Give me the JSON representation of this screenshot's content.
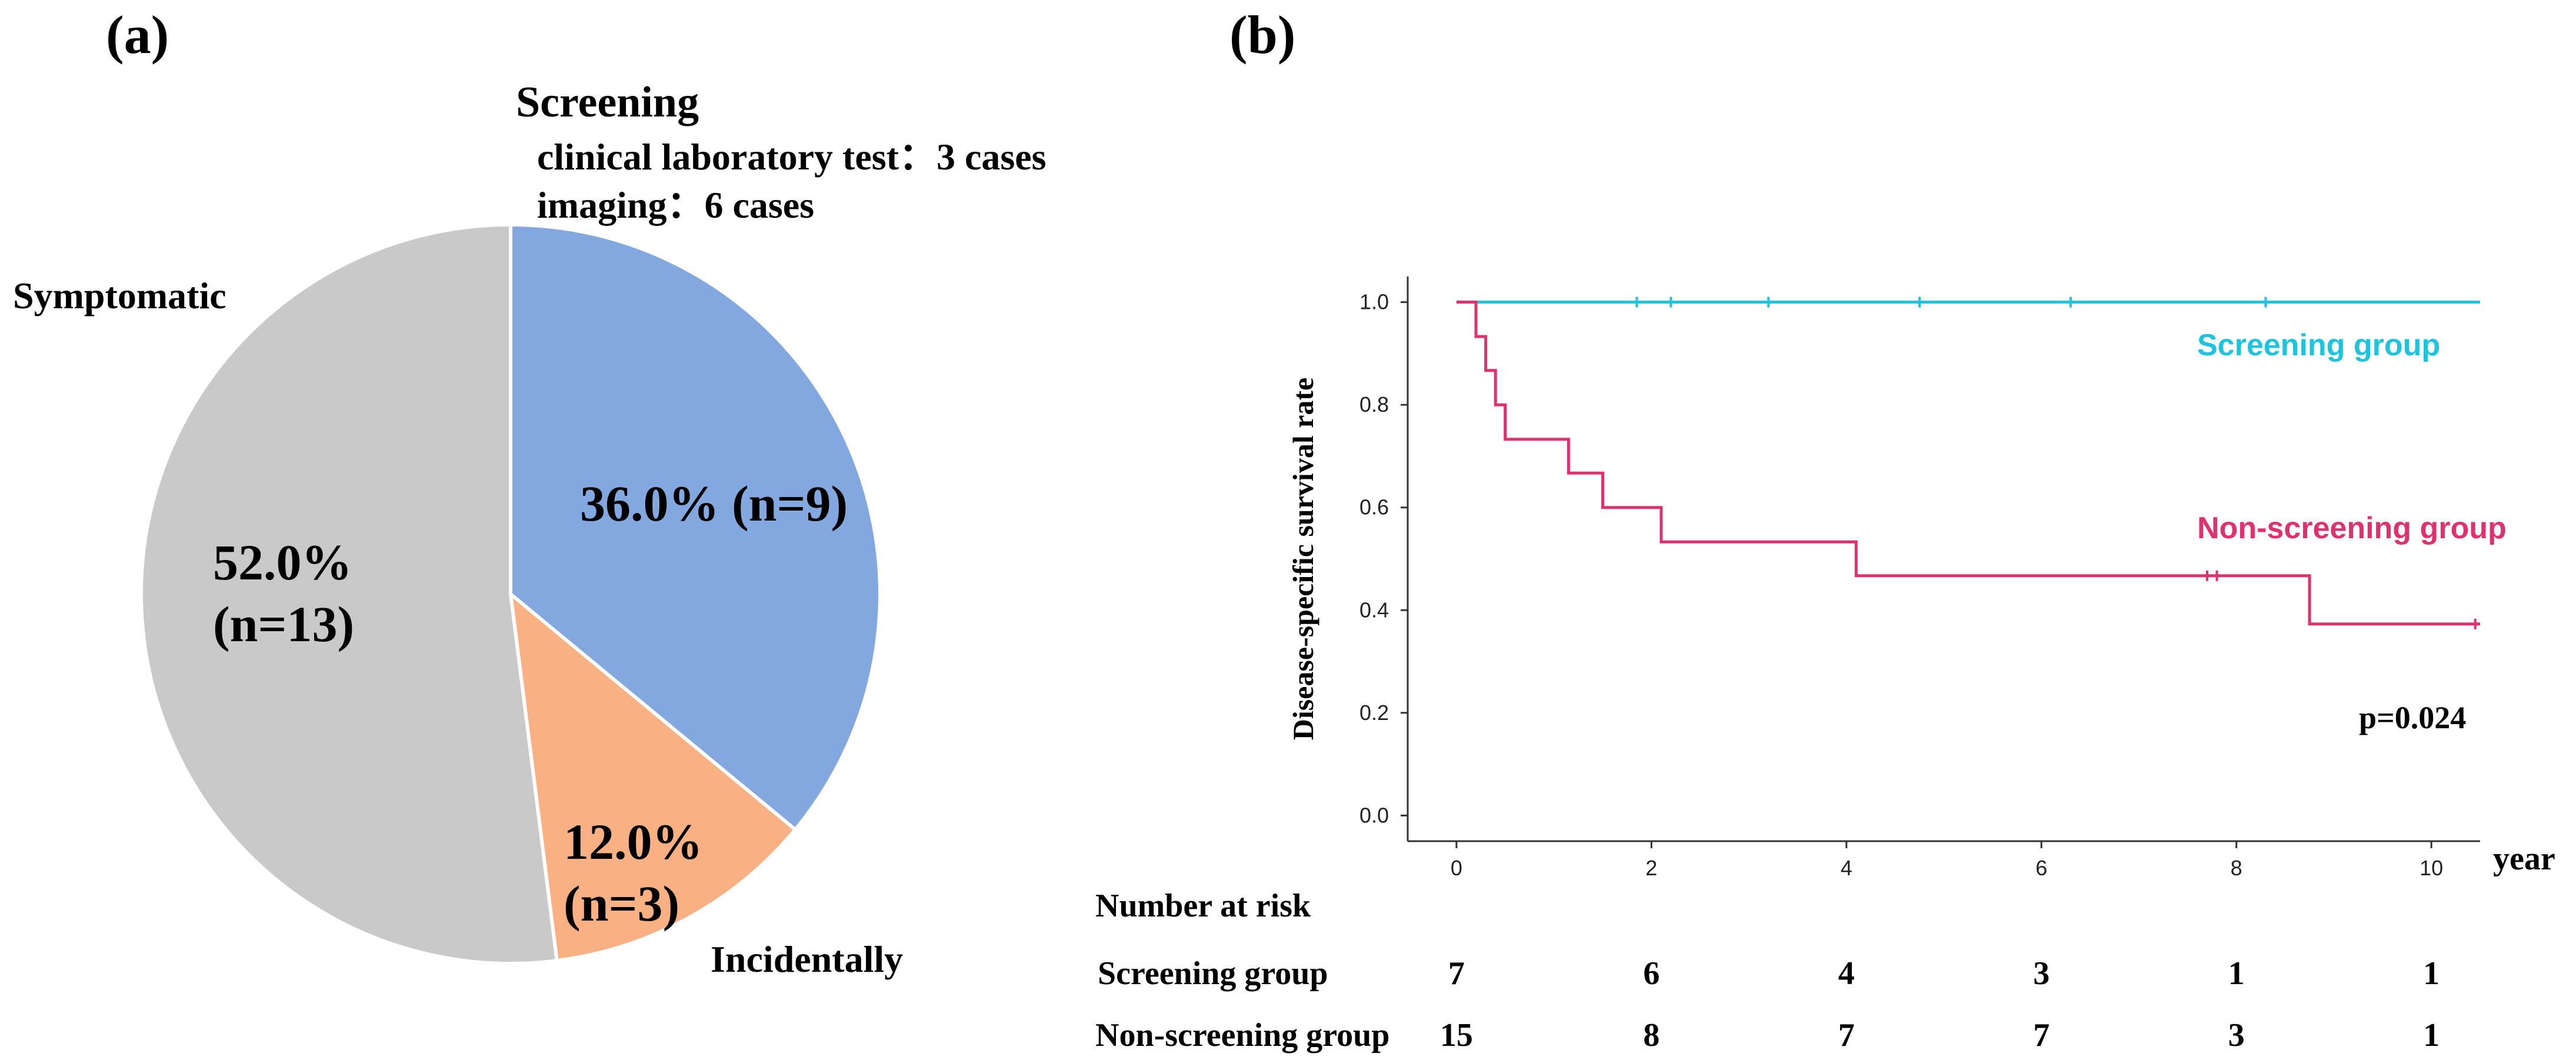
{
  "panels": {
    "a_label": "(a)",
    "b_label": "(b)"
  },
  "chart_data": [
    {
      "type": "pie",
      "panel": "(a)",
      "slices": [
        {
          "name": "Screening",
          "value": 36.0,
          "label": "36.0% (n=9)",
          "pct_text": "36.0%",
          "n_text": "(n=9)",
          "color": "#82a8df"
        },
        {
          "name": "Incidentally",
          "value": 12.0,
          "label": "12.0% (n=3)",
          "pct_text": "12.0%",
          "n_text": "(n=3)",
          "color": "#f9b183"
        },
        {
          "name": "Symptomatic",
          "value": 52.0,
          "label": "52.0% (n=13)",
          "pct_text": "52.0%",
          "n_text": "(n=13)",
          "color": "#c9c9c9"
        }
      ],
      "annotations": {
        "screening_title": "Screening",
        "screening_detail_1": "clinical laboratory test：3 cases",
        "screening_detail_2": "imaging：6 cases",
        "symptomatic": "Symptomatic",
        "incidentally": "Incidentally"
      }
    },
    {
      "type": "line",
      "subtype": "kaplan-meier",
      "panel": "(b)",
      "ylabel": "Disease-specific survival rate",
      "xlabel": "year",
      "xlim": [
        -0.5,
        10.5
      ],
      "ylim": [
        -0.05,
        1.05
      ],
      "xticks": [
        0,
        2,
        4,
        6,
        8,
        10
      ],
      "yticks": [
        0.0,
        0.2,
        0.4,
        0.6,
        0.8,
        1.0
      ],
      "ytick_labels": [
        "0.0",
        "0.2",
        "0.4",
        "0.6",
        "0.8",
        "1.0"
      ],
      "xtick_labels": [
        "0",
        "2",
        "4",
        "6",
        "8",
        "10"
      ],
      "series": [
        {
          "name": "Screening group",
          "color": "#1ec3dd",
          "steps": [
            [
              0,
              1.0
            ],
            [
              10.5,
              1.0
            ]
          ],
          "censored": [
            [
              1.85,
              1.0
            ],
            [
              2.2,
              1.0
            ],
            [
              3.2,
              1.0
            ],
            [
              4.75,
              1.0
            ],
            [
              6.3,
              1.0
            ],
            [
              8.3,
              1.0
            ]
          ]
        },
        {
          "name": "Non-screening group",
          "color": "#e0306e",
          "steps": [
            [
              0,
              1.0
            ],
            [
              0.2,
              0.933
            ],
            [
              0.3,
              0.867
            ],
            [
              0.4,
              0.8
            ],
            [
              0.5,
              0.733
            ],
            [
              1.15,
              0.667
            ],
            [
              1.5,
              0.6
            ],
            [
              2.1,
              0.533
            ],
            [
              4.1,
              0.467
            ],
            [
              8.75,
              0.373
            ],
            [
              10.5,
              0.373
            ]
          ],
          "censored": [
            [
              7.7,
              0.467
            ],
            [
              7.8,
              0.467
            ],
            [
              10.45,
              0.373
            ]
          ]
        }
      ],
      "p_value": "p=0.024",
      "risk_table": {
        "title": "Number at risk",
        "rows": [
          {
            "label": "Screening group",
            "values": [
              "7",
              "6",
              "4",
              "3",
              "1",
              "1"
            ]
          },
          {
            "label": "Non-screening group",
            "values": [
              "15",
              "8",
              "7",
              "7",
              "3",
              "1"
            ]
          }
        ]
      }
    }
  ]
}
